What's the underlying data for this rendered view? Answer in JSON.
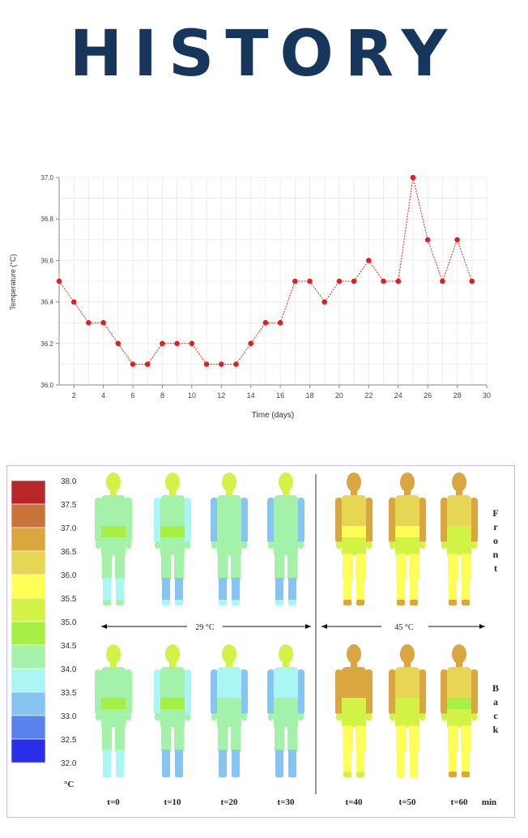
{
  "page": {
    "title": "HISTORY"
  },
  "chart_data": {
    "type": "line",
    "title": "",
    "xlabel": "Time (days)",
    "ylabel": "Temperature (°C)",
    "xlim": [
      1,
      30
    ],
    "ylim": [
      36.0,
      37.0
    ],
    "x_ticks": [
      2,
      4,
      6,
      8,
      10,
      12,
      14,
      16,
      18,
      20,
      22,
      24,
      26,
      28,
      30
    ],
    "y_ticks": [
      "36.0",
      "36.2",
      "36.4",
      "36.6",
      "36.8",
      "37.0"
    ],
    "grid": true,
    "series": [
      {
        "color": "#e02020",
        "x": [
          1,
          2,
          3,
          4,
          5,
          6,
          7,
          8,
          9,
          10,
          11,
          12,
          13,
          14,
          15,
          16,
          17,
          18,
          19,
          20,
          21,
          22,
          23,
          24,
          25,
          26,
          27,
          28,
          29
        ],
        "y": [
          36.5,
          36.4,
          36.3,
          36.3,
          36.2,
          36.1,
          36.1,
          36.2,
          36.2,
          36.2,
          36.1,
          36.1,
          36.1,
          36.2,
          36.3,
          36.3,
          36.5,
          36.5,
          36.4,
          36.5,
          36.5,
          36.6,
          36.5,
          36.5,
          37.0,
          36.7,
          36.5,
          36.7,
          36.5
        ]
      }
    ]
  },
  "thermal": {
    "unit_label": "°C",
    "min_label": "min",
    "scale": [
      {
        "label": "38.0",
        "color": "#b8282a"
      },
      {
        "label": "37.5",
        "color": "#c8743a"
      },
      {
        "label": "37.0",
        "color": "#d9a640"
      },
      {
        "label": "36.5",
        "color": "#e6d653"
      },
      {
        "label": "36.0",
        "color": "#ffff55"
      },
      {
        "label": "35.5",
        "color": "#d2f346"
      },
      {
        "label": "35.0",
        "color": "#a6f046"
      },
      {
        "label": "34.5",
        "color": "#a4f2aa"
      },
      {
        "label": "34.0",
        "color": "#aaf6f4"
      },
      {
        "label": "33.5",
        "color": "#87c4f2"
      },
      {
        "label": "33.0",
        "color": "#5a82ec"
      },
      {
        "label": "32.5",
        "color": "#2a2ee6"
      },
      {
        "label": "32.0",
        "color": ""
      }
    ],
    "conditions": [
      "29 °C",
      "45 °C"
    ],
    "side_labels": {
      "front": "Front",
      "back": "Back"
    },
    "times": [
      "t=0",
      "t=10",
      "t=20",
      "t=30",
      "t=40",
      "t=50",
      "t=60"
    ]
  }
}
